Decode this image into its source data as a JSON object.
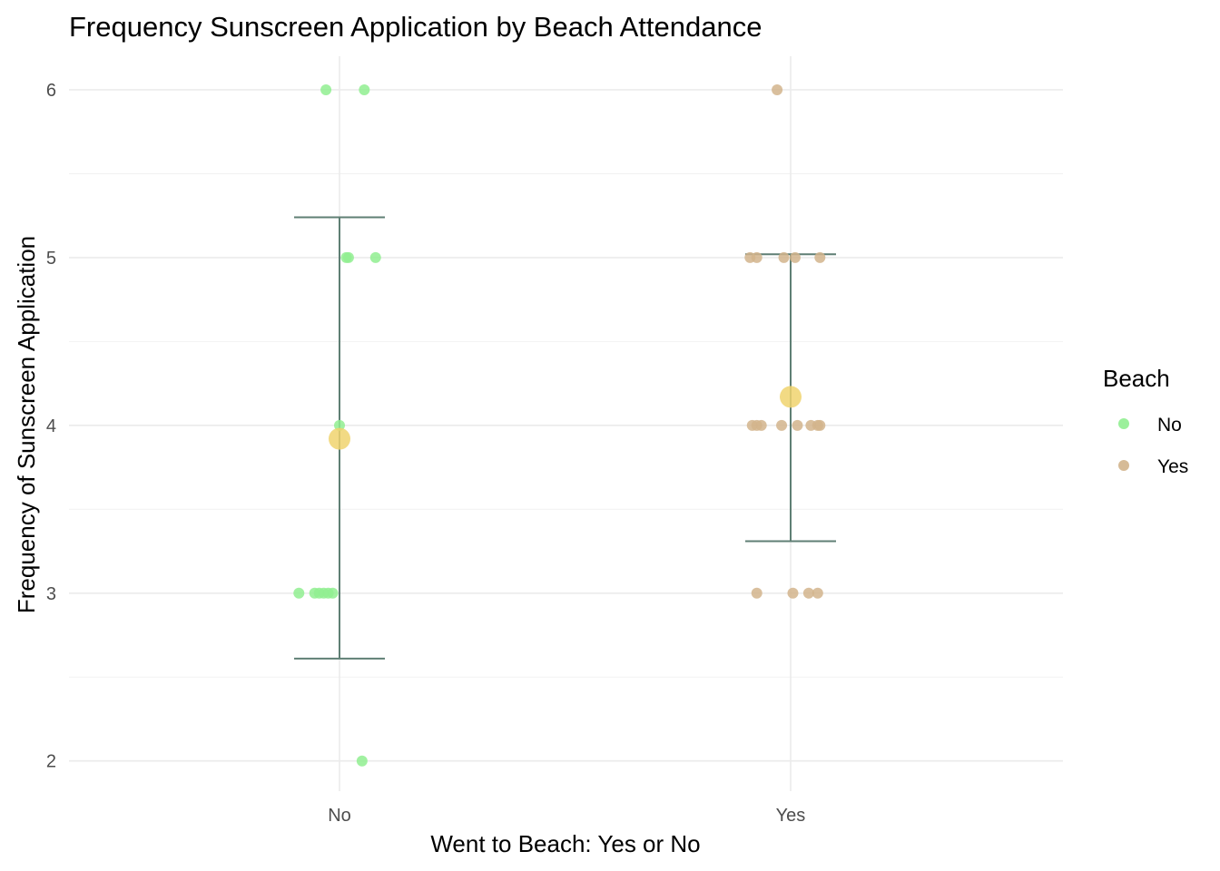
{
  "chart_data": {
    "type": "scatter",
    "title": "Frequency Sunscreen Application by Beach Attendance",
    "xlabel": "Went to Beach: Yes or No",
    "ylabel": "Frequency of Sunscreen Application",
    "categories": [
      "No",
      "Yes"
    ],
    "ylim": [
      1.82,
      6.2
    ],
    "yticks": [
      2,
      3,
      4,
      5,
      6
    ],
    "yticks_minor": [
      2.5,
      3.5,
      4.5,
      5.5
    ],
    "grid": true,
    "legend": {
      "title": "Beach",
      "position": "right",
      "entries": [
        "No",
        "Yes"
      ]
    },
    "colors": {
      "No": "#90ee90",
      "Yes": "#d2b48c",
      "mean": "#f0d46e",
      "errorbar": "#5f7f74"
    },
    "series": [
      {
        "name": "No",
        "category": "No",
        "points": [
          {
            "jitter": -0.03,
            "y": 6
          },
          {
            "jitter": 0.055,
            "y": 6
          },
          {
            "jitter": 0.015,
            "y": 5
          },
          {
            "jitter": 0.02,
            "y": 5
          },
          {
            "jitter": 0.08,
            "y": 5
          },
          {
            "jitter": 0.0,
            "y": 4
          },
          {
            "jitter": -0.09,
            "y": 3
          },
          {
            "jitter": -0.055,
            "y": 3
          },
          {
            "jitter": -0.045,
            "y": 3
          },
          {
            "jitter": -0.035,
            "y": 3
          },
          {
            "jitter": -0.025,
            "y": 3
          },
          {
            "jitter": -0.015,
            "y": 3
          },
          {
            "jitter": 0.05,
            "y": 2
          }
        ],
        "mean": 3.92,
        "error_low": 2.61,
        "error_high": 5.24
      },
      {
        "name": "Yes",
        "category": "Yes",
        "points": [
          {
            "jitter": -0.03,
            "y": 6
          },
          {
            "jitter": -0.09,
            "y": 5
          },
          {
            "jitter": -0.075,
            "y": 5
          },
          {
            "jitter": -0.015,
            "y": 5
          },
          {
            "jitter": 0.01,
            "y": 5
          },
          {
            "jitter": 0.065,
            "y": 5
          },
          {
            "jitter": -0.085,
            "y": 4
          },
          {
            "jitter": -0.075,
            "y": 4
          },
          {
            "jitter": -0.065,
            "y": 4
          },
          {
            "jitter": -0.02,
            "y": 4
          },
          {
            "jitter": 0.015,
            "y": 4
          },
          {
            "jitter": 0.045,
            "y": 4
          },
          {
            "jitter": 0.06,
            "y": 4
          },
          {
            "jitter": 0.065,
            "y": 4
          },
          {
            "jitter": -0.075,
            "y": 3
          },
          {
            "jitter": 0.005,
            "y": 3
          },
          {
            "jitter": 0.04,
            "y": 3
          },
          {
            "jitter": 0.06,
            "y": 3
          }
        ],
        "mean": 4.17,
        "error_low": 3.31,
        "error_high": 5.02
      }
    ]
  }
}
